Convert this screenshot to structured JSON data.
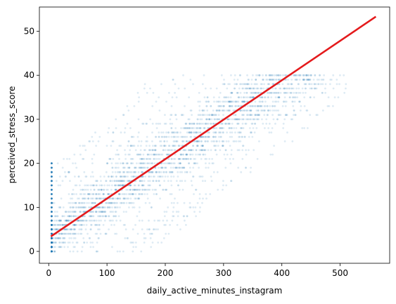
{
  "chart_data": {
    "type": "scatter",
    "title": "",
    "xlabel": "daily_active_minutes_instagram",
    "ylabel": "perceived_stress_score",
    "xlim": [
      -16,
      585
    ],
    "ylim": [
      -2.7,
      55.5
    ],
    "xticks": [
      0,
      100,
      200,
      300,
      400,
      500
    ],
    "yticks": [
      0,
      10,
      20,
      30,
      40,
      50
    ],
    "grid": false,
    "legend": "none",
    "colors": {
      "scatter": "#1f77b4",
      "fit_line": "#e41a1c",
      "frame": "#000000"
    },
    "scatter_style": {
      "marker": "small dot",
      "alpha": 0.15
    },
    "scatter_bands": [
      {
        "y": 0,
        "x_min": 5,
        "x_max": 170
      },
      {
        "y": 5,
        "x_min": 5,
        "x_min_dense": 5,
        "x_max": 230
      },
      {
        "y": 10,
        "x_min": 5,
        "x_max": 270
      },
      {
        "y": 15,
        "x_min": 5,
        "x_max": 320
      },
      {
        "y": 20,
        "x_min": 5,
        "x_max": 370
      },
      {
        "y": 25,
        "x_min": 60,
        "x_max": 420
      },
      {
        "y": 30,
        "x_min": 100,
        "x_max": 470
      },
      {
        "y": 35,
        "x_min": 140,
        "x_max": 500
      },
      {
        "y": 40,
        "x_min": 180,
        "x_max": 555
      }
    ],
    "fit_line": {
      "x": [
        5,
        560
      ],
      "y": [
        3.5,
        53.2
      ]
    }
  }
}
